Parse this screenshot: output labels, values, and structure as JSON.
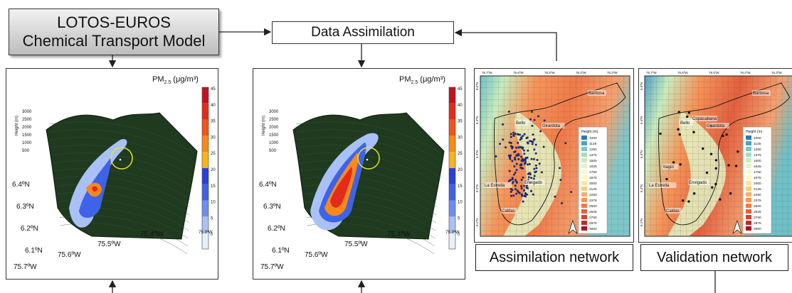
{
  "model_box": {
    "line1": "LOTOS-EUROS",
    "line2": "Chemical Transport Model"
  },
  "data_assimilation": {
    "label": "Data Assimilation"
  },
  "surface_panels": {
    "title_main": "PM",
    "title_sub": "2.5",
    "title_unit": "(μg/m³)",
    "height_axis_label": "Height (m)",
    "height_ticks": [
      "3000",
      "2500",
      "2000",
      "1500",
      "1000",
      "500"
    ],
    "lat_ticks": [
      "6.4ºN",
      "6.3ºN",
      "6.2ºN",
      "6.1ºN"
    ],
    "lon_ticks": [
      "75.7ºW",
      "75.6ºW",
      "75.5ºW",
      "75.4ºW",
      "75.3ºW"
    ],
    "colorbar_ticks": [
      "45",
      "40",
      "35",
      "30",
      "25",
      "20",
      "15",
      "10",
      "5",
      "0"
    ],
    "colorbar_colors": [
      "#c1121f",
      "#e32b1b",
      "#f1551b",
      "#f8891a",
      "#fbb31b",
      "#2a3fd8",
      "#3f63e6",
      "#6d8ef0",
      "#a9c1f6",
      "#e8eefc"
    ]
  },
  "maps": {
    "lon_ticks": [
      "75.7ºW",
      "75.6ºW",
      "75.5ºW",
      "75.4ºW",
      "75.3ºW"
    ],
    "lat_ticks": [
      "6.5ºN",
      "6.4ºN",
      "6.3ºN",
      "6.2ºN",
      "6.1ºN"
    ],
    "legend_title": "Height (m)",
    "legend_values": [
      "1000",
      "1125",
      "1250",
      "1375",
      "1500",
      "1625",
      "1750",
      "1875",
      "2000",
      "2125",
      "2250",
      "2375",
      "2500",
      "2625",
      "2750",
      "2875",
      "3000"
    ],
    "legend_colors": [
      "#2c7bb6",
      "#4fa0c8",
      "#7fc6c9",
      "#a7dcc0",
      "#c8ebbc",
      "#e3f4c4",
      "#f5fbd2",
      "#fef6c4",
      "#fee4a0",
      "#fdcc80",
      "#fbb06a",
      "#f79458",
      "#f07a48",
      "#e45f3c",
      "#d34332",
      "#c12a28",
      "#b0101c"
    ],
    "assimilation_places": [
      "Barbosa",
      "Bello",
      "Girardota",
      "Envigado",
      "La Estrella",
      "Caldas"
    ],
    "validation_places": [
      "Barbosa",
      "Bello",
      "Girardota",
      "Copacabana",
      "Itagüí",
      "Envigado",
      "La Estrella",
      "Caldas"
    ]
  },
  "network_labels": {
    "assimilation": "Assimilation network",
    "validation": "Validation network"
  },
  "colors": {
    "terrain": "#1f3a1f",
    "highlight_circle": "#e4e42a",
    "station_assim": "#1a2b6e",
    "station_valid": "#111111"
  }
}
